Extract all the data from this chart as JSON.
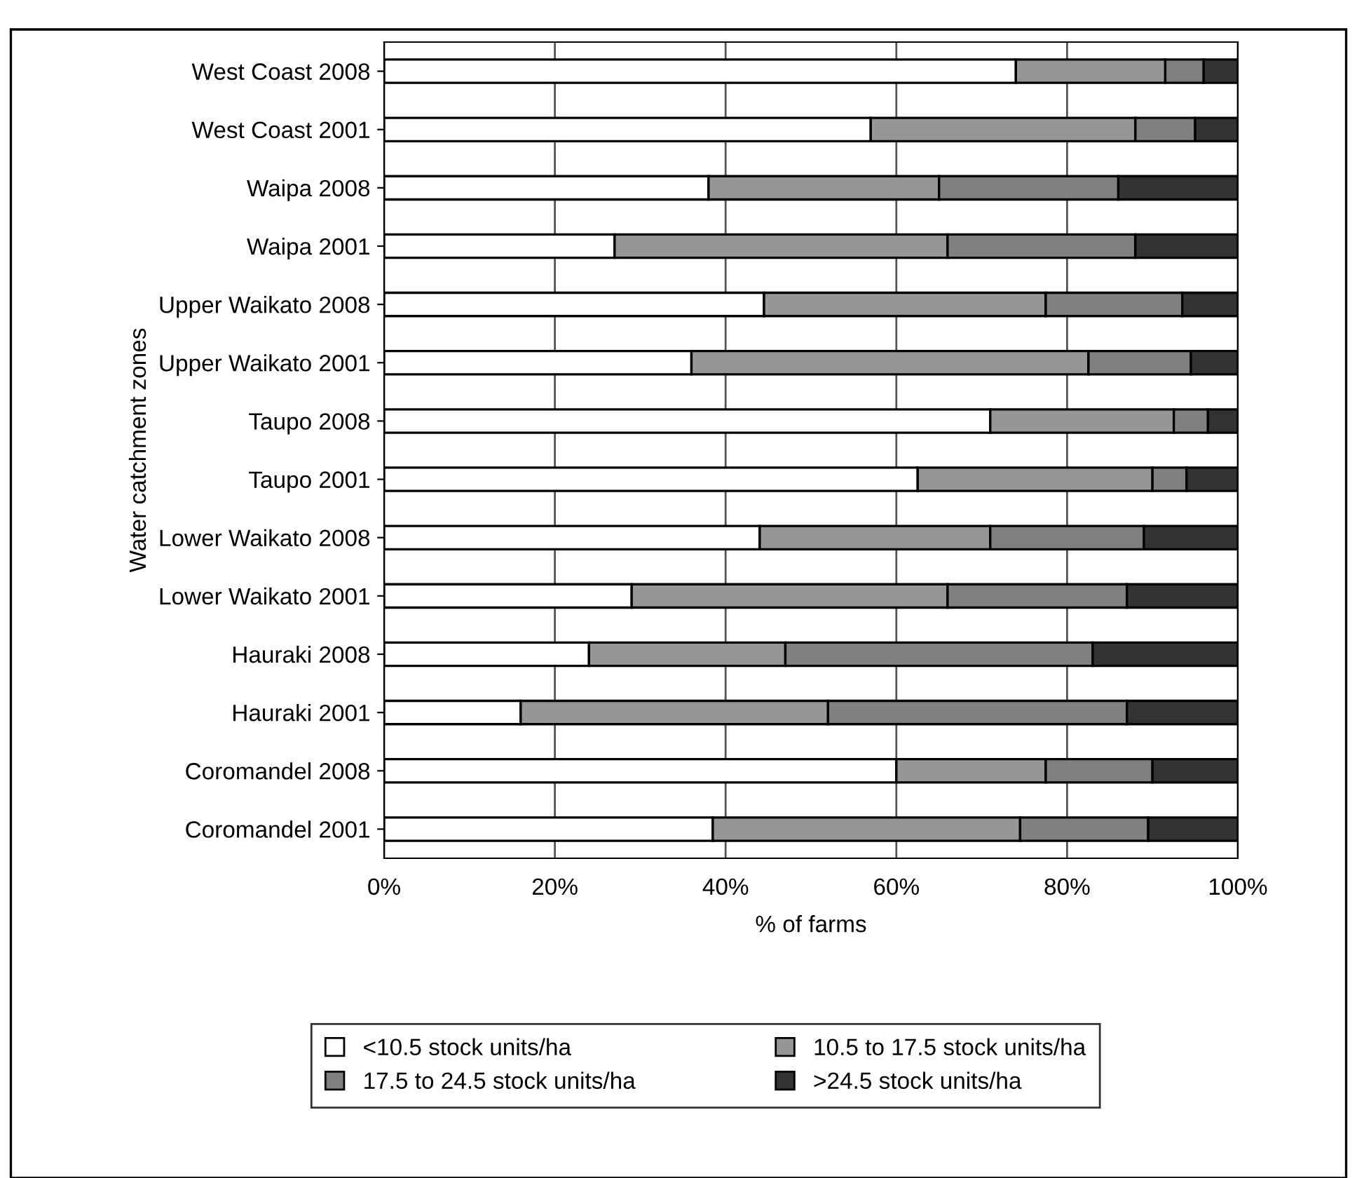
{
  "chart_data": {
    "type": "bar",
    "orientation": "horizontal",
    "stacked": true,
    "xlabel": "% of farms",
    "ylabel": "Water catchment zones",
    "categories": [
      "West Coast 2008",
      "West Coast 2001",
      "Waipa 2008",
      "Waipa 2001",
      "Upper Waikato 2008",
      "Upper Waikato 2001",
      "Taupo 2008",
      "Taupo 2001",
      "Lower Waikato 2008",
      "Lower Waikato 2001",
      "Hauraki 2008",
      "Hauraki 2001",
      "Coromandel 2008",
      "Coromandel 2001"
    ],
    "series": [
      {
        "name": "<10.5 stock units/ha",
        "color": "#ffffff",
        "values": [
          74,
          57,
          38,
          27,
          44.5,
          36,
          71,
          62.5,
          44,
          29,
          24,
          16,
          60,
          38.5
        ]
      },
      {
        "name": "10.5 to 17.5 stock units/ha",
        "color": "#969696",
        "values": [
          17.5,
          31,
          27,
          39,
          33,
          46.5,
          21.5,
          27.5,
          27,
          37,
          23,
          36,
          17.5,
          36
        ]
      },
      {
        "name": "17.5 to 24.5 stock units/ha",
        "color": "#808080",
        "values": [
          4.5,
          7,
          21,
          22,
          16,
          12,
          4,
          4,
          18,
          21,
          36,
          35,
          12.5,
          15
        ]
      },
      {
        "name": ">24.5 stock units/ha",
        "color": "#333333",
        "values": [
          4,
          5,
          14,
          12,
          6.5,
          5.5,
          3.5,
          6,
          11,
          13,
          17,
          13,
          10,
          10.5
        ]
      }
    ],
    "xlim": [
      0,
      100
    ],
    "xticks": [
      {
        "value": 0,
        "label": "0%"
      },
      {
        "value": 20,
        "label": "20%"
      },
      {
        "value": 40,
        "label": "40%"
      },
      {
        "value": 60,
        "label": "60%"
      },
      {
        "value": 80,
        "label": "80%"
      },
      {
        "value": 100,
        "label": "100%"
      }
    ],
    "grid": "x",
    "legend": "bottom"
  }
}
